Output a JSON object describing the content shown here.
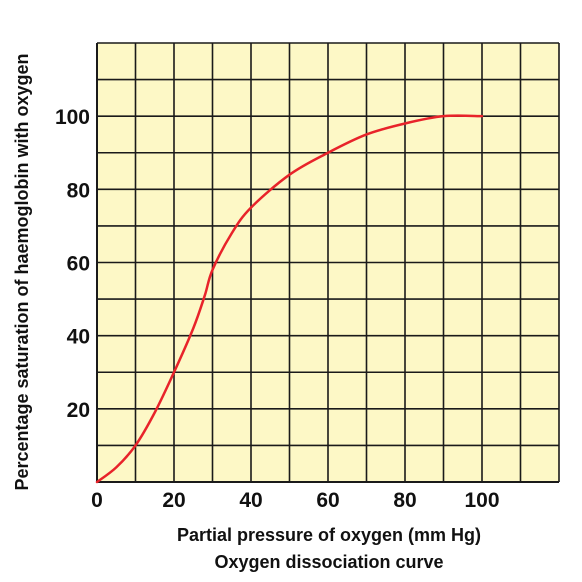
{
  "chart_data": {
    "type": "line",
    "title": "",
    "caption": "Oxygen dissociation curve",
    "xlabel": "Partial pressure of oxygen (mm Hg)",
    "ylabel": "Percentage saturation of haemoglobin with oxygen",
    "xlim": [
      0,
      120
    ],
    "ylim": [
      0,
      120
    ],
    "x_ticks": [
      0,
      20,
      40,
      60,
      80,
      100
    ],
    "x_tick_labels": [
      "0",
      "20",
      "40",
      "60",
      "80",
      "100"
    ],
    "y_ticks": [
      20,
      40,
      60,
      80,
      100
    ],
    "y_tick_labels": [
      "20",
      "40",
      "60",
      "80",
      "100"
    ],
    "grid": true,
    "grid_step": 10,
    "colors": {
      "background": "#fdf8c6",
      "grid": "#1a1a1a",
      "line": "#e8232a"
    },
    "series": [
      {
        "x": [
          0,
          5,
          10,
          15,
          20,
          25,
          28,
          30,
          35,
          40,
          50,
          60,
          70,
          80,
          90,
          100
        ],
        "y": [
          0,
          4,
          10,
          19,
          30,
          42,
          51,
          58,
          68,
          75,
          84,
          90,
          95,
          98,
          100,
          100
        ]
      }
    ]
  }
}
